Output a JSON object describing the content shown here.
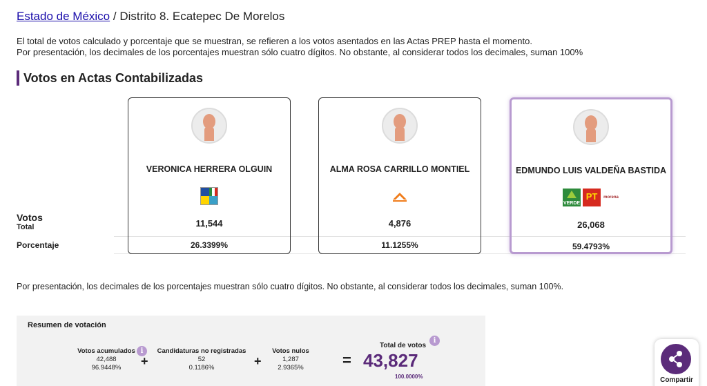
{
  "breadcrumb": {
    "state_link": "Estado de México",
    "separator": "/",
    "district": "Distrito 8. Ecatepec De Morelos"
  },
  "info": {
    "line1": "El total de votos calculado y porcentaje que se muestran, se refieren a los votos asentados en las Actas PREP hasta el momento.",
    "line2": "Por presentación, los decimales de los porcentajes muestran sólo cuatro dígitos. No obstante, al considerar todos los decimales, suman 100%"
  },
  "section": {
    "title": "Votos en Actas Contabilizadas"
  },
  "row_labels": {
    "votes": "Votos",
    "total": "Total",
    "percentage": "Porcentaje"
  },
  "candidates": [
    {
      "name": "VERONICA HERRERA OLGUIN",
      "votes": "11,544",
      "percentage": "26.3399%",
      "party_logos": [
        "pan-pri-prd-coalition-icon"
      ]
    },
    {
      "name": "ALMA ROSA CARRILLO MONTIEL",
      "votes": "4,876",
      "percentage": "11.1255%",
      "party_logos": [
        "movimiento-ciudadano-icon"
      ]
    },
    {
      "name": "EDMUNDO LUIS VALDEÑA BASTIDA",
      "votes": "26,068",
      "percentage": "59.4793%",
      "party_logos": [
        "verde-icon",
        "pt-icon",
        "morena-icon"
      ],
      "logo_text": {
        "verde": "VERDE",
        "pt": "PT",
        "morena": "morena"
      }
    }
  ],
  "note": "Por presentación, los decimales de los porcentajes muestran sólo cuatro dígitos. No obstante, al considerar todos los decimales, suman 100%.",
  "summary": {
    "title": "Resumen de votación",
    "accumulated": {
      "label": "Votos acumulados",
      "value": "42,488",
      "pct": "96.9448%"
    },
    "unregistered": {
      "label": "Candidaturas no registradas",
      "value": "52",
      "pct": "0.1186%"
    },
    "null_votes": {
      "label": "Votos nulos",
      "value": "1,287",
      "pct": "2.9365%"
    },
    "total": {
      "label": "Total de votos",
      "value": "43,827",
      "pct": "100.0000%"
    },
    "plus": "+",
    "equals": "="
  },
  "share": {
    "label": "Compartir"
  },
  "colors": {
    "accent": "#5b2b7a",
    "winner_border": "#b89ad0",
    "link": "#1a0dab"
  }
}
